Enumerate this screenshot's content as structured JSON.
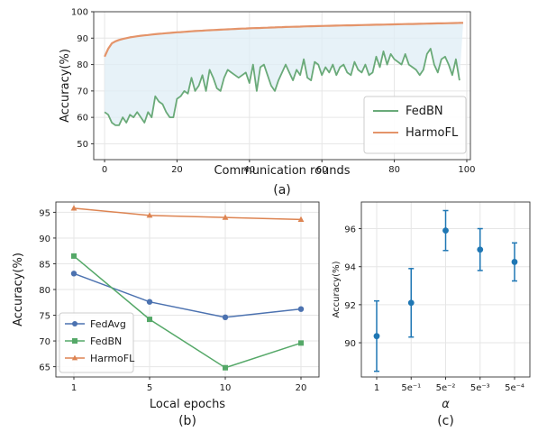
{
  "chart_data": [
    {
      "id": "a",
      "type": "line",
      "caption": "(a)",
      "xlabel": "Communication rounds",
      "ylabel": "Accuracy(%)",
      "xlim": [
        -3,
        101
      ],
      "ylim": [
        44,
        100
      ],
      "xticks": [
        0,
        20,
        40,
        60,
        80,
        100
      ],
      "yticks": [
        50,
        60,
        70,
        80,
        90,
        100
      ],
      "grid": true,
      "shaded_gap": true,
      "legend": "bottom-right",
      "series": [
        {
          "name": "FedBN",
          "color": "#6aaa79",
          "values": [
            62,
            61,
            58,
            57,
            57,
            60,
            58,
            61,
            60,
            62,
            60,
            58,
            62,
            60,
            68,
            66,
            65,
            62,
            60,
            60,
            67,
            68,
            70,
            69,
            75,
            70,
            72,
            76,
            70,
            78,
            75,
            71,
            70,
            75,
            78,
            77,
            76,
            75,
            76,
            77,
            73,
            80,
            70,
            79,
            80,
            76,
            72,
            70,
            74,
            77,
            80,
            77,
            74,
            78,
            76,
            82,
            75,
            74,
            81,
            80,
            76,
            79,
            77,
            80,
            76,
            79,
            80,
            77,
            76,
            81,
            78,
            77,
            80,
            76,
            77,
            83,
            79,
            85,
            80,
            84,
            82,
            81,
            80,
            84,
            80,
            79,
            78,
            76,
            78,
            84,
            86,
            80,
            77,
            82,
            83,
            80,
            76,
            82,
            74
          ]
        },
        {
          "name": "HarmoFL",
          "color": "#e4946a",
          "values": [
            83,
            86,
            88,
            88.8,
            89.3,
            89.7,
            90,
            90.3,
            90.5,
            90.7,
            90.9,
            91.05,
            91.2,
            91.35,
            91.5,
            91.62,
            91.74,
            91.86,
            91.98,
            92.1,
            92.2,
            92.3,
            92.4,
            92.5,
            92.6,
            92.68,
            92.76,
            92.84,
            92.92,
            93,
            93.07,
            93.14,
            93.21,
            93.28,
            93.35,
            93.42,
            93.48,
            93.54,
            93.6,
            93.66,
            93.72,
            93.77,
            93.82,
            93.87,
            93.92,
            93.97,
            94.02,
            94.07,
            94.12,
            94.17,
            94.22,
            94.26,
            94.3,
            94.34,
            94.38,
            94.42,
            94.46,
            94.5,
            94.54,
            94.58,
            94.62,
            94.65,
            94.68,
            94.71,
            94.74,
            94.77,
            94.8,
            94.83,
            94.86,
            94.89,
            94.92,
            94.95,
            94.98,
            95.01,
            95.04,
            95.07,
            95.1,
            95.13,
            95.16,
            95.19,
            95.22,
            95.25,
            95.28,
            95.31,
            95.34,
            95.37,
            95.4,
            95.43,
            95.46,
            95.49,
            95.52,
            95.55,
            95.58,
            95.61,
            95.64,
            95.67,
            95.7,
            95.73,
            95.76,
            95.8
          ]
        }
      ]
    },
    {
      "id": "b",
      "type": "line",
      "caption": "(b)",
      "xlabel": "Local epochs",
      "ylabel": "Accuracy(%)",
      "categories": [
        "1",
        "5",
        "10",
        "20"
      ],
      "ylim": [
        63,
        97
      ],
      "yticks": [
        65,
        70,
        75,
        80,
        85,
        90,
        95
      ],
      "grid": true,
      "legend": "bottom-left",
      "series": [
        {
          "name": "FedAvg",
          "color": "#4c72b0",
          "marker": "circle",
          "values": [
            83.1,
            77.6,
            74.6,
            76.2
          ]
        },
        {
          "name": "FedBN",
          "color": "#55a868",
          "marker": "square",
          "values": [
            86.5,
            74.2,
            64.8,
            69.6
          ]
        },
        {
          "name": "HarmoFL",
          "color": "#dd8452",
          "marker": "triangle",
          "values": [
            95.8,
            94.4,
            94.0,
            93.6
          ]
        }
      ]
    },
    {
      "id": "c",
      "type": "scatter",
      "caption": "(c)",
      "xlabel": "α",
      "ylabel": "Accuracy(%)",
      "categories": [
        "1",
        "5e⁻¹",
        "5e⁻²",
        "5e⁻³",
        "5e⁻⁴"
      ],
      "ylim": [
        88.2,
        97.4
      ],
      "yticks": [
        90,
        92,
        94,
        96
      ],
      "grid": true,
      "color": "#1f77b4",
      "values": [
        90.35,
        92.1,
        95.9,
        94.9,
        94.25
      ],
      "error": [
        1.85,
        1.8,
        1.05,
        1.1,
        1.0
      ]
    }
  ]
}
